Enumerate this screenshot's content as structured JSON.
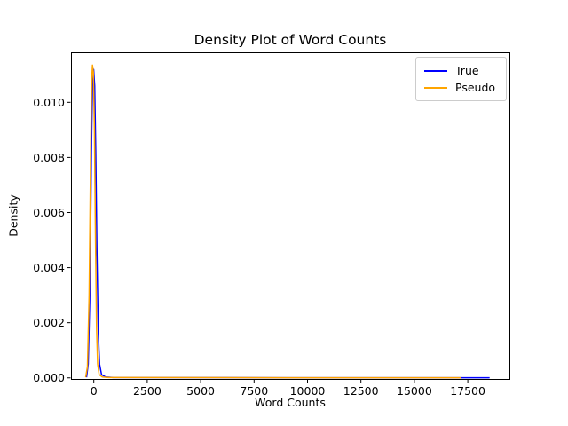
{
  "figure": {
    "background": "#ffffff",
    "frame_color": "#000000"
  },
  "chart_data": {
    "type": "line",
    "title": "Density Plot of Word Counts",
    "xlabel": "Word Counts",
    "ylabel": "Density",
    "grid": false,
    "legend_position": "upper right",
    "xlim": [
      -1067,
      19448
    ],
    "ylim": [
      -4e-05,
      0.011814
    ],
    "x_ticks": [
      {
        "value": 0,
        "label": "0"
      },
      {
        "value": 2500,
        "label": "2500"
      },
      {
        "value": 5000,
        "label": "5000"
      },
      {
        "value": 7500,
        "label": "7500"
      },
      {
        "value": 10000,
        "label": "10000"
      },
      {
        "value": 12500,
        "label": "12500"
      },
      {
        "value": 15000,
        "label": "15000"
      },
      {
        "value": 17500,
        "label": "17500"
      }
    ],
    "y_ticks": [
      {
        "value": 0.0,
        "label": "0.000"
      },
      {
        "value": 0.002,
        "label": "0.002"
      },
      {
        "value": 0.004,
        "label": "0.004"
      },
      {
        "value": 0.006,
        "label": "0.006"
      },
      {
        "value": 0.008,
        "label": "0.008"
      },
      {
        "value": 0.01,
        "label": "0.010"
      }
    ],
    "series": [
      {
        "name": "True",
        "color": "#0000ff",
        "points": [
          [
            -340,
            2e-05
          ],
          [
            -260,
            0.0005
          ],
          [
            -180,
            0.0032
          ],
          [
            -110,
            0.0082
          ],
          [
            -60,
            0.0106
          ],
          [
            -10,
            0.0112
          ],
          [
            40,
            0.0106
          ],
          [
            90,
            0.0082
          ],
          [
            150,
            0.0044
          ],
          [
            210,
            0.0016
          ],
          [
            270,
            0.0005
          ],
          [
            360,
            0.00012
          ],
          [
            550,
            3e-05
          ],
          [
            900,
            1e-05
          ],
          [
            9000,
            6e-06
          ],
          [
            18520,
            4e-06
          ]
        ]
      },
      {
        "name": "Pseudo",
        "color": "#ffa500",
        "points": [
          [
            -380,
            2e-05
          ],
          [
            -300,
            0.0004
          ],
          [
            -220,
            0.003
          ],
          [
            -150,
            0.008
          ],
          [
            -100,
            0.0108
          ],
          [
            -60,
            0.01135
          ],
          [
            -20,
            0.0111
          ],
          [
            30,
            0.009
          ],
          [
            80,
            0.005
          ],
          [
            130,
            0.0018
          ],
          [
            180,
            0.0005
          ],
          [
            250,
            0.00012
          ],
          [
            400,
            3e-05
          ],
          [
            700,
            1e-05
          ],
          [
            9000,
            6e-06
          ],
          [
            17200,
            5e-06
          ]
        ]
      }
    ]
  }
}
